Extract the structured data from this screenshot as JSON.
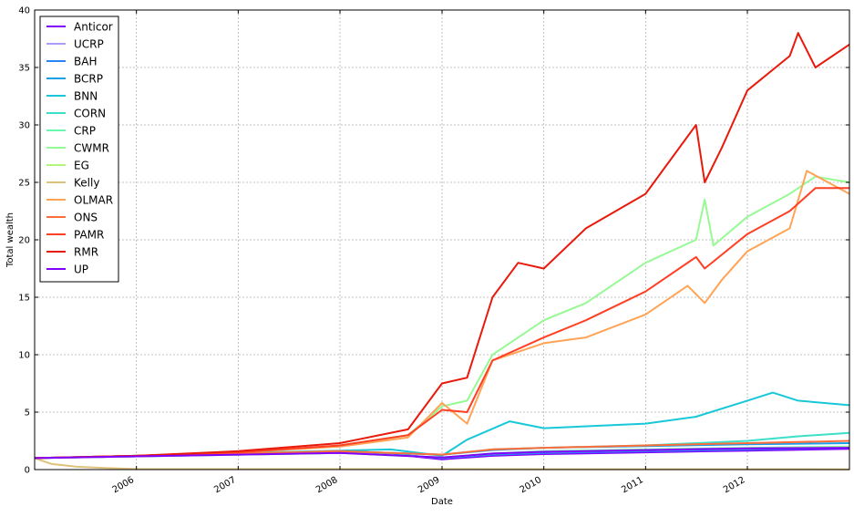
{
  "chart_data": {
    "type": "line",
    "title": "",
    "xlabel": "Date",
    "ylabel": "Total wealth",
    "xlim": [
      "2005-01-01",
      "2013-01-01"
    ],
    "ylim": [
      0,
      40
    ],
    "x_ticks": [
      "2006",
      "2007",
      "2008",
      "2009",
      "2010",
      "2011",
      "2012"
    ],
    "y_ticks": [
      "0",
      "5",
      "10",
      "15",
      "20",
      "25",
      "30",
      "35",
      "40"
    ],
    "grid": true,
    "legend_position": "top-left",
    "series": [
      {
        "name": "Anticor",
        "color": "#7f00ff",
        "points": [
          [
            "2005-01-01",
            1.0
          ],
          [
            "2006-01-01",
            1.15
          ],
          [
            "2007-01-01",
            1.35
          ],
          [
            "2008-01-01",
            1.45
          ],
          [
            "2008-07-01",
            1.35
          ],
          [
            "2009-01-01",
            0.9
          ],
          [
            "2009-07-01",
            1.2
          ],
          [
            "2010-01-01",
            1.35
          ],
          [
            "2011-01-01",
            1.5
          ],
          [
            "2012-01-01",
            1.65
          ],
          [
            "2013-01-01",
            1.8
          ]
        ]
      },
      {
        "name": "UCRP",
        "color": "#5e35fe",
        "points": [
          [
            "2005-01-01",
            1.0
          ],
          [
            "2006-01-01",
            1.15
          ],
          [
            "2007-01-01",
            1.35
          ],
          [
            "2008-01-01",
            1.5
          ],
          [
            "2008-07-01",
            1.4
          ],
          [
            "2009-01-01",
            1.0
          ],
          [
            "2009-07-01",
            1.35
          ],
          [
            "2010-01-01",
            1.5
          ],
          [
            "2011-01-01",
            1.65
          ],
          [
            "2012-01-01",
            1.8
          ],
          [
            "2013-01-01",
            1.95
          ]
        ]
      },
      {
        "name": "BAH",
        "color": "#2a84f7",
        "points": [
          [
            "2005-01-01",
            1.0
          ],
          [
            "2006-01-01",
            1.15
          ],
          [
            "2007-01-01",
            1.3
          ],
          [
            "2008-01-01",
            1.45
          ],
          [
            "2008-07-01",
            1.35
          ],
          [
            "2009-01-01",
            1.0
          ],
          [
            "2009-07-01",
            1.3
          ],
          [
            "2010-01-01",
            1.45
          ],
          [
            "2011-01-01",
            1.6
          ],
          [
            "2012-01-01",
            1.75
          ],
          [
            "2013-01-01",
            1.9
          ]
        ]
      },
      {
        "name": "BCRP",
        "color": "#1a9ee8",
        "points": [
          [
            "2005-01-01",
            1.0
          ],
          [
            "2006-01-01",
            1.2
          ],
          [
            "2007-01-01",
            1.4
          ],
          [
            "2008-01-01",
            1.6
          ],
          [
            "2009-01-01",
            1.3
          ],
          [
            "2009-07-01",
            1.7
          ],
          [
            "2010-01-01",
            1.9
          ],
          [
            "2011-01-01",
            2.05
          ],
          [
            "2012-01-01",
            2.2
          ],
          [
            "2013-01-01",
            2.3
          ]
        ]
      },
      {
        "name": "BNN",
        "color": "#18c8d8",
        "points": [
          [
            "2005-01-01",
            1.0
          ],
          [
            "2006-01-01",
            1.2
          ],
          [
            "2007-01-01",
            1.45
          ],
          [
            "2008-01-01",
            1.65
          ],
          [
            "2008-07-01",
            1.75
          ],
          [
            "2009-01-01",
            1.2
          ],
          [
            "2009-04-01",
            2.6
          ],
          [
            "2009-09-01",
            4.2
          ],
          [
            "2010-01-01",
            3.6
          ],
          [
            "2010-07-01",
            3.8
          ],
          [
            "2011-01-01",
            4.0
          ],
          [
            "2011-07-01",
            4.6
          ],
          [
            "2012-01-01",
            6.0
          ],
          [
            "2012-04-01",
            6.7
          ],
          [
            "2012-07-01",
            6.0
          ],
          [
            "2013-01-01",
            5.6
          ]
        ]
      },
      {
        "name": "CORN",
        "color": "#3ce0c8",
        "points": [
          [
            "2005-01-01",
            1.0
          ],
          [
            "2006-01-01",
            1.2
          ],
          [
            "2007-01-01",
            1.45
          ],
          [
            "2008-01-01",
            1.6
          ],
          [
            "2009-01-01",
            1.3
          ],
          [
            "2009-07-01",
            1.75
          ],
          [
            "2010-01-01",
            1.9
          ],
          [
            "2011-01-01",
            2.1
          ],
          [
            "2012-01-01",
            2.5
          ],
          [
            "2012-07-01",
            2.9
          ],
          [
            "2013-01-01",
            3.2
          ]
        ]
      },
      {
        "name": "CRP",
        "color": "#6cf7b0",
        "points": [
          [
            "2005-01-01",
            1.0
          ],
          [
            "2006-01-01",
            1.15
          ],
          [
            "2007-01-01",
            1.3
          ],
          [
            "2008-01-01",
            1.45
          ],
          [
            "2009-01-01",
            1.05
          ],
          [
            "2009-07-01",
            1.4
          ],
          [
            "2010-01-01",
            1.6
          ],
          [
            "2011-01-01",
            1.75
          ],
          [
            "2012-01-01",
            1.9
          ],
          [
            "2013-01-01",
            2.0
          ]
        ]
      },
      {
        "name": "CWMR",
        "color": "#96fa94",
        "points": [
          [
            "2005-01-01",
            1.0
          ],
          [
            "2006-01-01",
            1.2
          ],
          [
            "2007-01-01",
            1.5
          ],
          [
            "2008-01-01",
            2.1
          ],
          [
            "2008-09-01",
            3.0
          ],
          [
            "2009-01-01",
            5.5
          ],
          [
            "2009-04-01",
            6.0
          ],
          [
            "2009-07-01",
            10.0
          ],
          [
            "2010-01-01",
            13.0
          ],
          [
            "2010-06-01",
            14.5
          ],
          [
            "2011-01-01",
            18.0
          ],
          [
            "2011-07-01",
            20.0
          ],
          [
            "2011-08-01",
            23.5
          ],
          [
            "2011-09-01",
            19.5
          ],
          [
            "2012-01-01",
            22.0
          ],
          [
            "2012-06-01",
            24.0
          ],
          [
            "2012-09-01",
            25.5
          ],
          [
            "2013-01-01",
            25.0
          ]
        ]
      },
      {
        "name": "EG",
        "color": "#b2f77a",
        "points": [
          [
            "2005-01-01",
            1.0
          ],
          [
            "2006-01-01",
            1.15
          ],
          [
            "2007-01-01",
            1.3
          ],
          [
            "2008-01-01",
            1.45
          ],
          [
            "2009-01-01",
            1.05
          ],
          [
            "2009-07-01",
            1.4
          ],
          [
            "2010-01-01",
            1.55
          ],
          [
            "2011-01-01",
            1.7
          ],
          [
            "2012-01-01",
            1.85
          ],
          [
            "2013-01-01",
            1.95
          ]
        ]
      },
      {
        "name": "Kelly",
        "color": "#dfc37c",
        "points": [
          [
            "2005-01-01",
            1.0
          ],
          [
            "2005-03-01",
            0.5
          ],
          [
            "2005-06-01",
            0.25
          ],
          [
            "2005-09-01",
            0.15
          ],
          [
            "2006-01-01",
            0.05
          ],
          [
            "2013-01-01",
            0.02
          ]
        ]
      },
      {
        "name": "OLMAR",
        "color": "#ffa356",
        "points": [
          [
            "2005-01-01",
            1.0
          ],
          [
            "2006-01-01",
            1.2
          ],
          [
            "2007-01-01",
            1.5
          ],
          [
            "2008-01-01",
            2.0
          ],
          [
            "2008-09-01",
            2.8
          ],
          [
            "2009-01-01",
            5.8
          ],
          [
            "2009-04-01",
            4.0
          ],
          [
            "2009-07-01",
            9.5
          ],
          [
            "2010-01-01",
            11.0
          ],
          [
            "2010-06-01",
            11.5
          ],
          [
            "2011-01-01",
            13.5
          ],
          [
            "2011-06-01",
            16.0
          ],
          [
            "2011-08-01",
            14.5
          ],
          [
            "2011-10-01",
            16.5
          ],
          [
            "2012-01-01",
            19.0
          ],
          [
            "2012-06-01",
            21.0
          ],
          [
            "2012-08-01",
            26.0
          ],
          [
            "2013-01-01",
            24.0
          ]
        ]
      },
      {
        "name": "ONS",
        "color": "#ff6d3a",
        "points": [
          [
            "2005-01-01",
            1.0
          ],
          [
            "2006-01-01",
            1.2
          ],
          [
            "2007-01-01",
            1.4
          ],
          [
            "2008-01-01",
            1.6
          ],
          [
            "2009-01-01",
            1.3
          ],
          [
            "2009-07-01",
            1.75
          ],
          [
            "2010-01-01",
            1.9
          ],
          [
            "2011-01-01",
            2.1
          ],
          [
            "2012-01-01",
            2.3
          ],
          [
            "2013-01-01",
            2.5
          ]
        ]
      },
      {
        "name": "PAMR",
        "color": "#ff4024",
        "points": [
          [
            "2005-01-01",
            1.0
          ],
          [
            "2006-01-01",
            1.2
          ],
          [
            "2007-01-01",
            1.5
          ],
          [
            "2008-01-01",
            2.1
          ],
          [
            "2008-09-01",
            3.0
          ],
          [
            "2009-01-01",
            5.2
          ],
          [
            "2009-04-01",
            5.0
          ],
          [
            "2009-07-01",
            9.5
          ],
          [
            "2010-01-01",
            11.5
          ],
          [
            "2010-06-01",
            13.0
          ],
          [
            "2011-01-01",
            15.5
          ],
          [
            "2011-07-01",
            18.5
          ],
          [
            "2011-08-01",
            17.5
          ],
          [
            "2012-01-01",
            20.5
          ],
          [
            "2012-06-01",
            22.5
          ],
          [
            "2012-09-01",
            24.5
          ],
          [
            "2013-01-01",
            24.5
          ]
        ]
      },
      {
        "name": "RMR",
        "color": "#e81a0c",
        "points": [
          [
            "2005-01-01",
            1.0
          ],
          [
            "2006-01-01",
            1.2
          ],
          [
            "2007-01-01",
            1.6
          ],
          [
            "2008-01-01",
            2.3
          ],
          [
            "2008-09-01",
            3.5
          ],
          [
            "2009-01-01",
            7.5
          ],
          [
            "2009-04-01",
            8.0
          ],
          [
            "2009-07-01",
            15.0
          ],
          [
            "2009-10-01",
            18.0
          ],
          [
            "2010-01-01",
            17.5
          ],
          [
            "2010-06-01",
            21.0
          ],
          [
            "2011-01-01",
            24.0
          ],
          [
            "2011-07-01",
            30.0
          ],
          [
            "2011-08-01",
            25.0
          ],
          [
            "2011-10-01",
            28.0
          ],
          [
            "2012-01-01",
            33.0
          ],
          [
            "2012-06-01",
            36.0
          ],
          [
            "2012-07-01",
            38.0
          ],
          [
            "2012-09-01",
            35.0
          ],
          [
            "2013-01-01",
            37.0
          ]
        ]
      },
      {
        "name": "UP",
        "color": "#7f00ff",
        "points": [
          [
            "2005-01-01",
            1.0
          ],
          [
            "2006-01-01",
            1.15
          ],
          [
            "2007-01-01",
            1.3
          ],
          [
            "2008-01-01",
            1.45
          ],
          [
            "2009-01-01",
            1.05
          ],
          [
            "2009-07-01",
            1.4
          ],
          [
            "2010-01-01",
            1.55
          ],
          [
            "2011-01-01",
            1.7
          ],
          [
            "2012-01-01",
            1.85
          ],
          [
            "2013-01-01",
            1.9
          ]
        ]
      }
    ]
  }
}
